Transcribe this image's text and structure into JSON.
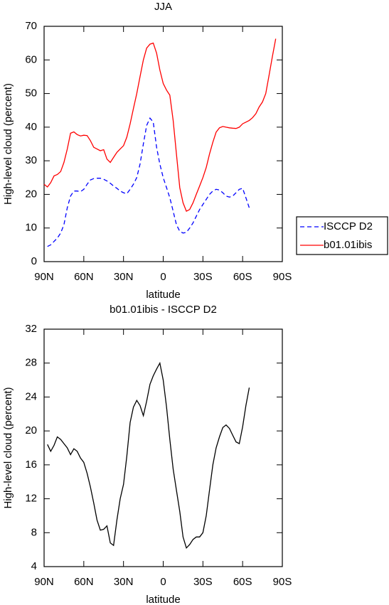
{
  "chart_data": [
    {
      "type": "line",
      "title": "JJA",
      "x_label": "latitude",
      "y_label": "High-level cloud (percent)",
      "xlim": [
        90,
        -90
      ],
      "xticks": [
        {
          "value": 90,
          "label": "90N"
        },
        {
          "value": 60,
          "label": "60N"
        },
        {
          "value": 30,
          "label": "30N"
        },
        0,
        {
          "value": -30,
          "label": "30S"
        },
        {
          "value": -60,
          "label": "60S"
        },
        {
          "value": -90,
          "label": "90S"
        }
      ],
      "ylim": [
        0,
        70
      ],
      "yticks": [
        0,
        10,
        20,
        30,
        40,
        50,
        60,
        70
      ],
      "legend": "right",
      "series": [
        {
          "name": "ISCCP D2",
          "color": "#0000ff",
          "dash": true,
          "x": [
            87.5,
            85,
            82.5,
            80,
            77.5,
            75,
            72.5,
            70,
            67.5,
            65,
            62.5,
            60,
            57.5,
            55,
            52.5,
            50,
            47.5,
            45,
            42.5,
            40,
            37.5,
            35,
            32.5,
            30,
            27.5,
            25,
            22.5,
            20,
            17.5,
            15,
            12.5,
            10,
            7.5,
            5,
            2.5,
            0,
            -2.5,
            -5,
            -7.5,
            -10,
            -12.5,
            -15,
            -17.5,
            -20,
            -22.5,
            -25,
            -27.5,
            -30,
            -32.5,
            -35,
            -37.5,
            -40,
            -42.5,
            -45,
            -47.5,
            -50,
            -52.5,
            -55,
            -57.5,
            -60,
            -62.5,
            -65
          ],
          "values": [
            4.5,
            5,
            6,
            7,
            8.5,
            11,
            16,
            19.5,
            21,
            21,
            20.8,
            21.5,
            23,
            24.3,
            24.7,
            24.8,
            24.8,
            24.5,
            24,
            23.3,
            22.5,
            21.8,
            21,
            20.5,
            20.2,
            21.5,
            23,
            25,
            29,
            35,
            40.5,
            42.7,
            41.5,
            34,
            29,
            25,
            22,
            19,
            15,
            11,
            9,
            8.5,
            8.7,
            10,
            11.5,
            13.5,
            15.5,
            17,
            18.5,
            20,
            21,
            21.5,
            21.3,
            20.5,
            19.5,
            19.2,
            19.5,
            20.5,
            21.5,
            21.8,
            19,
            16
          ]
        },
        {
          "name": "b01.01ibis",
          "color": "#ff0000",
          "dash": false,
          "x": [
            90,
            87.5,
            85,
            82.5,
            80,
            77.5,
            75,
            72.5,
            70,
            67.5,
            65,
            62.5,
            60,
            57.5,
            55,
            52.5,
            50,
            47.5,
            45,
            42.5,
            40,
            37.5,
            35,
            32.5,
            30,
            27.5,
            25,
            22.5,
            20,
            17.5,
            15,
            12.5,
            10,
            7.5,
            5,
            2.5,
            0,
            -2.5,
            -5,
            -7.5,
            -10,
            -12.5,
            -15,
            -17.5,
            -20,
            -22.5,
            -25,
            -27.5,
            -30,
            -32.5,
            -35,
            -37.5,
            -40,
            -42.5,
            -45,
            -47.5,
            -50,
            -52.5,
            -55,
            -57.5,
            -60,
            -62.5,
            -65,
            -67.5,
            -70,
            -72.5,
            -75,
            -77.5,
            -80,
            -82.5,
            -85
          ],
          "values": [
            23,
            22.2,
            23.5,
            25.5,
            25.9,
            26.8,
            29.5,
            33.5,
            38.2,
            38.6,
            37.8,
            37.4,
            37.6,
            37.5,
            36,
            34,
            33.5,
            33,
            33.3,
            30.5,
            29.5,
            31,
            32.5,
            33.5,
            34.5,
            37,
            41,
            45.5,
            50,
            55,
            60,
            63.5,
            64.7,
            65,
            62,
            57,
            53,
            51,
            49.5,
            42,
            32,
            22,
            17.5,
            15,
            15.5,
            17.5,
            20,
            22.5,
            25,
            28,
            32,
            35.5,
            38.5,
            39.8,
            40.2,
            40,
            39.8,
            39.7,
            39.6,
            40,
            41,
            41.5,
            42,
            42.8,
            44,
            46,
            47.5,
            50,
            55.5,
            61,
            66.3
          ]
        }
      ]
    },
    {
      "type": "line",
      "title": "b01.01ibis - ISCCP D2",
      "x_label": "latitude",
      "y_label": "High-level cloud (percent)",
      "xlim": [
        90,
        -90
      ],
      "xticks": [
        {
          "value": 90,
          "label": "90N"
        },
        {
          "value": 60,
          "label": "60N"
        },
        {
          "value": 30,
          "label": "30N"
        },
        0,
        {
          "value": -30,
          "label": "30S"
        },
        {
          "value": -60,
          "label": "60S"
        },
        {
          "value": -90,
          "label": "90S"
        }
      ],
      "ylim": [
        4,
        32
      ],
      "yticks": [
        4,
        8,
        12,
        16,
        20,
        24,
        28,
        32
      ],
      "series": [
        {
          "color": "#000000",
          "dash": false,
          "x": [
            87.5,
            85,
            82.5,
            80,
            77.5,
            75,
            72.5,
            70,
            67.5,
            65,
            62.5,
            60,
            57.5,
            55,
            52.5,
            50,
            47.5,
            45,
            42.5,
            40,
            37.5,
            35,
            32.5,
            30,
            27.5,
            25,
            22.5,
            20,
            17.5,
            15,
            12.5,
            10,
            7.5,
            5,
            2.5,
            0,
            -2.5,
            -5,
            -7.5,
            -10,
            -12.5,
            -15,
            -17.5,
            -20,
            -22.5,
            -25,
            -27.5,
            -30,
            -32.5,
            -35,
            -37.5,
            -40,
            -42.5,
            -45,
            -47.5,
            -50,
            -52.5,
            -55,
            -57.5,
            -60,
            -62.5,
            -65
          ],
          "values": [
            18.4,
            17.6,
            18.3,
            19.3,
            19,
            18.5,
            18,
            17.2,
            17.9,
            17.6,
            16.8,
            16.3,
            15,
            13.4,
            11.5,
            9.5,
            8.3,
            8.4,
            8.8,
            6.8,
            6.5,
            9.5,
            12,
            13.7,
            17,
            21,
            22.8,
            23.6,
            23,
            21.8,
            23.5,
            25.5,
            26.5,
            27.3,
            28,
            26,
            22.8,
            19,
            15.5,
            13,
            10.5,
            7.5,
            6.2,
            6.6,
            7.2,
            7.5,
            7.5,
            8,
            10,
            13,
            16,
            18,
            19.3,
            20.4,
            20.7,
            20.3,
            19.5,
            18.7,
            18.5,
            20.5,
            23,
            25.1
          ]
        }
      ]
    }
  ]
}
